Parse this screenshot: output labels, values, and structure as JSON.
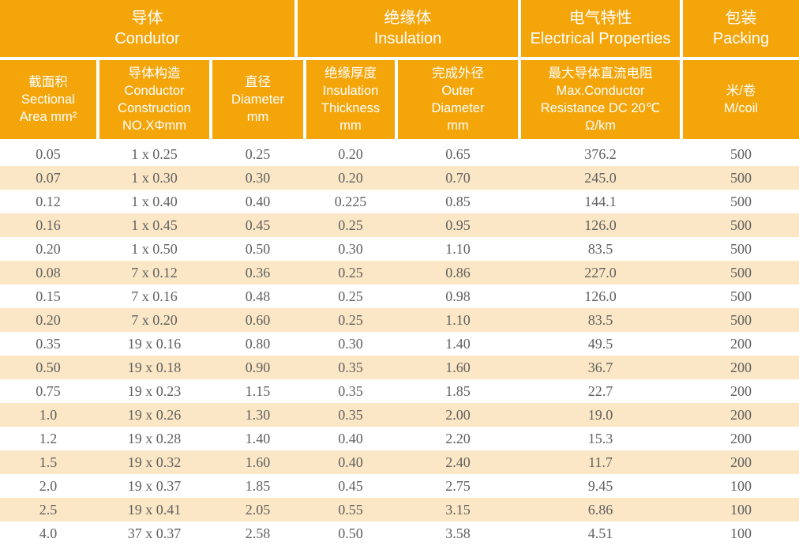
{
  "table": {
    "groups": [
      {
        "zh": "导体",
        "en": "Condutor"
      },
      {
        "zh": "绝缘体",
        "en": "Insulation"
      },
      {
        "zh": "电气特性",
        "en": "Electrical Properties"
      },
      {
        "zh": "包装",
        "en": "Packing"
      }
    ],
    "columns": [
      {
        "lines": [
          "截面积",
          "Sectional",
          "Area mm²"
        ]
      },
      {
        "lines": [
          "导体构造",
          "Conductor",
          "Construction",
          "NO.XΦmm"
        ]
      },
      {
        "lines": [
          "直径",
          "Diameter",
          "mm"
        ]
      },
      {
        "lines": [
          "绝缘厚度",
          "Insulation",
          "Thickness",
          "mm"
        ]
      },
      {
        "lines": [
          "完成外径",
          "Outer",
          "Diameter",
          "mm"
        ]
      },
      {
        "lines": [
          "最大导体直流电阻",
          "Max.Conductor",
          "Resistance DC 20℃",
          "Ω/km"
        ]
      },
      {
        "lines": [
          "米/卷",
          "M/coil"
        ]
      }
    ],
    "rows": [
      [
        "0.05",
        "1 x 0.25",
        "0.25",
        "0.20",
        "0.65",
        "376.2",
        "500"
      ],
      [
        "0.07",
        "1 x 0.30",
        "0.30",
        "0.20",
        "0.70",
        "245.0",
        "500"
      ],
      [
        "0.12",
        "1 x 0.40",
        "0.40",
        "0.225",
        "0.85",
        "144.1",
        "500"
      ],
      [
        "0.16",
        "1 x 0.45",
        "0.45",
        "0.25",
        "0.95",
        "126.0",
        "500"
      ],
      [
        "0.20",
        "1 x 0.50",
        "0.50",
        "0.30",
        "1.10",
        "83.5",
        "500"
      ],
      [
        "0.08",
        "7 x 0.12",
        "0.36",
        "0.25",
        "0.86",
        "227.0",
        "500"
      ],
      [
        "0.15",
        "7 x 0.16",
        "0.48",
        "0.25",
        "0.98",
        "126.0",
        "500"
      ],
      [
        "0.20",
        "7 x 0.20",
        "0.60",
        "0.25",
        "1.10",
        "83.5",
        "500"
      ],
      [
        "0.35",
        "19 x 0.16",
        "0.80",
        "0.30",
        "1.40",
        "49.5",
        "200"
      ],
      [
        "0.50",
        "19 x 0.18",
        "0.90",
        "0.35",
        "1.60",
        "36.7",
        "200"
      ],
      [
        "0.75",
        "19 x 0.23",
        "1.15",
        "0.35",
        "1.85",
        "22.7",
        "200"
      ],
      [
        "1.0",
        "19 x 0.26",
        "1.30",
        "0.35",
        "2.00",
        "19.0",
        "200"
      ],
      [
        "1.2",
        "19 x 0.28",
        "1.40",
        "0.40",
        "2.20",
        "15.3",
        "200"
      ],
      [
        "1.5",
        "19 x 0.32",
        "1.60",
        "0.40",
        "2.40",
        "11.7",
        "200"
      ],
      [
        "2.0",
        "19 x 0.37",
        "1.85",
        "0.45",
        "2.75",
        "9.45",
        "100"
      ],
      [
        "2.5",
        "19 x 0.41",
        "2.05",
        "0.55",
        "3.15",
        "6.86",
        "100"
      ],
      [
        "4.0",
        "37 x 0.37",
        "2.58",
        "0.50",
        "3.58",
        "4.51",
        "100"
      ]
    ]
  },
  "colors": {
    "header_bg": "#F3A50A",
    "header_text": "#FFFFFF",
    "stripe_bg": "#FBE7C5",
    "row_bg": "#FFFFFF",
    "divider": "#FFFFFF",
    "data_text": "#606060"
  }
}
